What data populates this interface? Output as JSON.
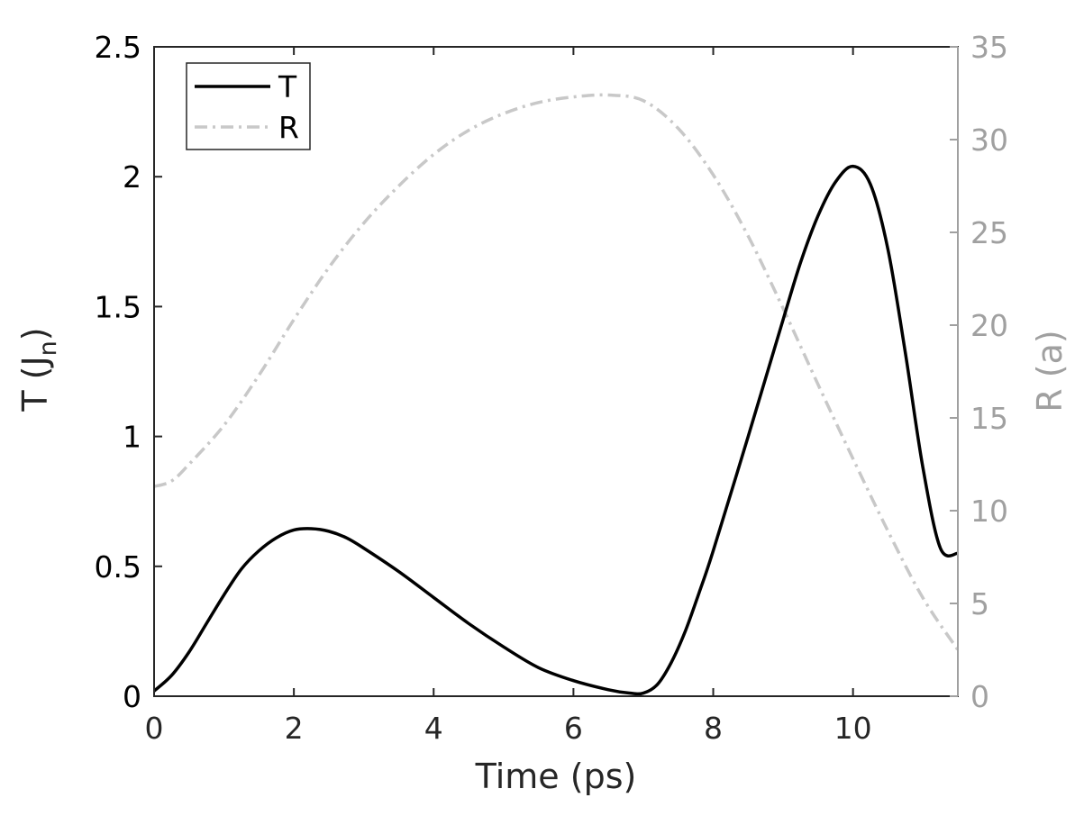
{
  "chart_data": {
    "type": "line",
    "xlabel": "Time (ps)",
    "ylabel_left_main": "T (J",
    "ylabel_left_sub": "n",
    "ylabel_left_close": ")",
    "ylabel_right": "R (a)",
    "xlim": [
      0,
      11.5
    ],
    "ylim_left": [
      0,
      2.5
    ],
    "ylim_right": [
      0,
      35
    ],
    "xticks": [
      "0",
      "2",
      "4",
      "6",
      "8",
      "10"
    ],
    "yticks_left": [
      "0",
      "0.5",
      "1",
      "1.5",
      "2",
      "2.5"
    ],
    "yticks_right": [
      "0",
      "5",
      "10",
      "15",
      "20",
      "25",
      "30",
      "35"
    ],
    "legend": {
      "placement": "top-left",
      "entries": [
        "T",
        "R"
      ]
    },
    "colors": {
      "T": "#000000",
      "R": "#c8c8c8",
      "right_axis": "#a0a0a0"
    },
    "series": [
      {
        "name": "T",
        "axis": "left",
        "style": "solid",
        "x": [
          0,
          0.25,
          0.5,
          0.75,
          1.0,
          1.25,
          1.5,
          1.75,
          2.0,
          2.25,
          2.5,
          2.75,
          3.0,
          3.5,
          4.0,
          4.5,
          5.0,
          5.5,
          6.0,
          6.5,
          6.8,
          7.0,
          7.2,
          7.4,
          7.6,
          7.8,
          8.0,
          8.5,
          9.0,
          9.25,
          9.5,
          9.75,
          10.0,
          10.25,
          10.5,
          10.75,
          11.0,
          11.25,
          11.5
        ],
        "values": [
          0.02,
          0.08,
          0.17,
          0.28,
          0.39,
          0.49,
          0.56,
          0.61,
          0.64,
          0.645,
          0.635,
          0.61,
          0.57,
          0.48,
          0.38,
          0.28,
          0.19,
          0.11,
          0.06,
          0.025,
          0.012,
          0.012,
          0.045,
          0.13,
          0.25,
          0.4,
          0.56,
          1.0,
          1.45,
          1.67,
          1.85,
          1.98,
          2.04,
          1.97,
          1.72,
          1.32,
          0.88,
          0.57,
          0.55
        ]
      },
      {
        "name": "R",
        "axis": "right",
        "style": "dash-dot",
        "x": [
          0,
          0.25,
          0.5,
          1.0,
          1.5,
          2.0,
          2.5,
          3.0,
          3.5,
          4.0,
          4.5,
          5.0,
          5.5,
          6.0,
          6.5,
          7.0,
          7.5,
          8.0,
          8.5,
          9.0,
          9.5,
          10.0,
          10.5,
          11.0,
          11.5
        ],
        "values": [
          11.3,
          11.6,
          12.5,
          14.6,
          17.3,
          20.3,
          23.1,
          25.5,
          27.5,
          29.2,
          30.5,
          31.4,
          32.0,
          32.3,
          32.4,
          32.1,
          30.6,
          28.1,
          24.8,
          20.9,
          16.8,
          12.8,
          8.9,
          5.3,
          2.5
        ]
      }
    ]
  }
}
